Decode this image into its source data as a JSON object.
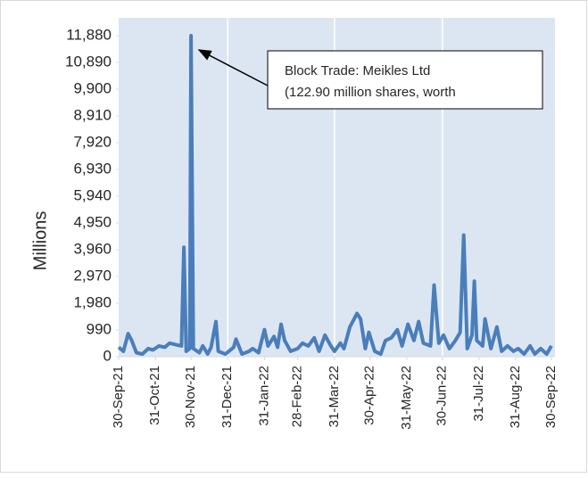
{
  "chart_data": {
    "type": "line",
    "ylabel": "Millions",
    "annotation": [
      "Block Trade: Meikles Ltd",
      "(122.90 million shares, worth"
    ],
    "color": "#4a7ebb",
    "background": "#dce6f2",
    "xlim": [
      "2021-09-30",
      "2022-09-30"
    ],
    "xticks": [
      {
        "value": "2021-09-30",
        "label": "30-Sep-21"
      },
      {
        "value": "2021-10-31",
        "label": "31-Oct-21"
      },
      {
        "value": "2021-11-30",
        "label": "30-Nov-21"
      },
      {
        "value": "2021-12-31",
        "label": "31-Dec-21"
      },
      {
        "value": "2022-01-31",
        "label": "31-Jan-22"
      },
      {
        "value": "2022-02-28",
        "label": "28-Feb-22"
      },
      {
        "value": "2022-03-31",
        "label": "31-Mar-22"
      },
      {
        "value": "2022-04-30",
        "label": "30-Apr-22"
      },
      {
        "value": "2022-05-31",
        "label": "31-May-22"
      },
      {
        "value": "2022-06-30",
        "label": "30-Jun-22"
      },
      {
        "value": "2022-07-31",
        "label": "31-Jul-22"
      },
      {
        "value": "2022-08-31",
        "label": "31-Aug-22"
      },
      {
        "value": "2022-09-30",
        "label": "30-Sep-22"
      }
    ],
    "xgrid": [
      "2021-12-31",
      "2022-03-31",
      "2022-06-30"
    ],
    "ylim": [
      0,
      12540
    ],
    "yticks": [
      0,
      990,
      {
        "value": 1980,
        "label": "1,980"
      },
      {
        "value": 2970,
        "label": "2,970"
      },
      {
        "value": 3960,
        "label": "3,960"
      },
      {
        "value": 4950,
        "label": "4,950"
      },
      {
        "value": 5940,
        "label": "5,940"
      },
      {
        "value": 6930,
        "label": "6,930"
      },
      {
        "value": 7920,
        "label": "7,920"
      },
      {
        "value": 8910,
        "label": "8,910"
      },
      {
        "value": 9900,
        "label": "9,900"
      },
      {
        "value": 10890,
        "label": "10,890"
      },
      {
        "value": 11880,
        "label": "11,880"
      }
    ],
    "x": [
      "2021-09-30",
      "2021-10-04",
      "2021-10-08",
      "2021-10-11",
      "2021-10-15",
      "2021-10-20",
      "2021-10-25",
      "2021-10-29",
      "2021-11-03",
      "2021-11-08",
      "2021-11-12",
      "2021-11-17",
      "2021-11-22",
      "2021-11-24",
      "2021-11-26",
      "2021-11-29",
      "2021-11-30",
      "2021-12-02",
      "2021-12-07",
      "2021-12-10",
      "2021-12-14",
      "2021-12-17",
      "2021-12-21",
      "2021-12-23",
      "2021-12-29",
      "2022-01-05",
      "2022-01-07",
      "2022-01-12",
      "2022-01-18",
      "2022-01-21",
      "2022-01-26",
      "2022-01-31",
      "2022-02-03",
      "2022-02-08",
      "2022-02-11",
      "2022-02-14",
      "2022-02-17",
      "2022-02-22",
      "2022-02-28",
      "2022-03-04",
      "2022-03-09",
      "2022-03-14",
      "2022-03-18",
      "2022-03-23",
      "2022-03-28",
      "2022-03-31",
      "2022-04-05",
      "2022-04-08",
      "2022-04-13",
      "2022-04-19",
      "2022-04-22",
      "2022-04-26",
      "2022-04-29",
      "2022-05-04",
      "2022-05-09",
      "2022-05-13",
      "2022-05-18",
      "2022-05-23",
      "2022-05-27",
      "2022-06-01",
      "2022-06-06",
      "2022-06-10",
      "2022-06-14",
      "2022-06-20",
      "2022-06-23",
      "2022-06-27",
      "2022-07-01",
      "2022-07-06",
      "2022-07-11",
      "2022-07-15",
      "2022-07-18",
      "2022-07-21",
      "2022-07-25",
      "2022-07-27",
      "2022-07-29",
      "2022-08-03",
      "2022-08-05",
      "2022-08-10",
      "2022-08-15",
      "2022-08-19",
      "2022-08-24",
      "2022-08-29",
      "2022-09-02",
      "2022-09-07",
      "2022-09-12",
      "2022-09-16",
      "2022-09-21",
      "2022-09-26",
      "2022-09-30"
    ],
    "values": [
      350,
      200,
      850,
      600,
      150,
      100,
      300,
      250,
      400,
      350,
      500,
      450,
      400,
      4050,
      200,
      300,
      11880,
      300,
      150,
      400,
      100,
      350,
      1300,
      200,
      100,
      350,
      650,
      100,
      200,
      300,
      150,
      1000,
      400,
      750,
      350,
      1200,
      600,
      200,
      300,
      500,
      400,
      700,
      200,
      800,
      400,
      200,
      500,
      300,
      1100,
      1600,
      1400,
      300,
      900,
      200,
      100,
      600,
      700,
      1000,
      400,
      1200,
      600,
      1300,
      500,
      400,
      2650,
      500,
      800,
      300,
      600,
      900,
      4500,
      300,
      800,
      2800,
      600,
      400,
      1400,
      300,
      1100,
      200,
      400,
      200,
      300,
      100,
      400,
      100,
      300,
      100,
      400
    ]
  }
}
